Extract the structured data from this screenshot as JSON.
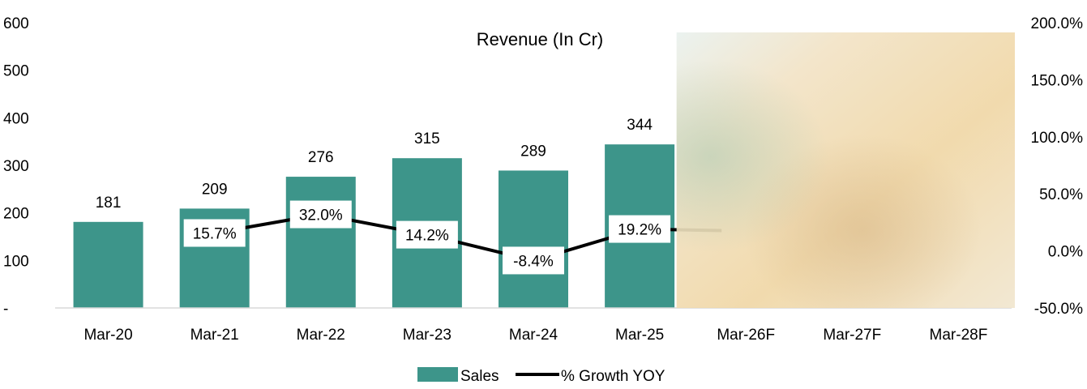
{
  "chart_data": {
    "type": "bar",
    "title": "Revenue (In Cr)",
    "categories": [
      "Mar-20",
      "Mar-21",
      "Mar-22",
      "Mar-23",
      "Mar-24",
      "Mar-25",
      "Mar-26F",
      "Mar-27F",
      "Mar-28F"
    ],
    "series": [
      {
        "name": "Sales",
        "kind": "bar",
        "axis": "left",
        "color": "#3D958A",
        "values": [
          181,
          209,
          276,
          315,
          289,
          344,
          null,
          null,
          null
        ],
        "labels": [
          "181",
          "209",
          "276",
          "315",
          "289",
          "344",
          "",
          "",
          ""
        ]
      },
      {
        "name": "% Growth YOY",
        "kind": "line",
        "axis": "right",
        "color": "#000000",
        "values": [
          null,
          15.7,
          32.0,
          14.2,
          -8.4,
          19.2,
          null,
          null,
          null
        ],
        "labels": [
          "",
          "15.7%",
          "32.0%",
          "14.2%",
          "-8.4%",
          "19.2%",
          "",
          "",
          ""
        ]
      }
    ],
    "y_left": {
      "range": [
        0,
        600
      ],
      "ticks": [
        0,
        100,
        200,
        300,
        400,
        500,
        600
      ],
      "tick_labels": [
        "-",
        "100",
        "200",
        "300",
        "400",
        "500",
        "600"
      ]
    },
    "y_right": {
      "range": [
        -50,
        200
      ],
      "ticks": [
        -50,
        0,
        50,
        100,
        150,
        200
      ],
      "tick_labels": [
        "-50.0%",
        "0.0%",
        "50.0%",
        "100.0%",
        "150.0%",
        "200.0%"
      ]
    },
    "legend": {
      "position": "bottom",
      "items": [
        "Sales",
        "% Growth YOY"
      ]
    },
    "grid": false,
    "blurred_region": "forecast columns Mar-26F to Mar-28F obscured"
  }
}
